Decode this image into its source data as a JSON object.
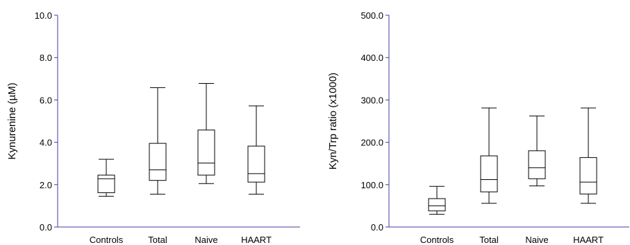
{
  "chart_data": [
    {
      "type": "box",
      "ylabel": "Kynurenine (µM)",
      "ylim": [
        0,
        10
      ],
      "yticks": [
        "0.0",
        "2.0",
        "4.0",
        "6.0",
        "8.0",
        "10.0"
      ],
      "categories": [
        "Controls",
        "Total",
        "Naive",
        "HAART"
      ],
      "boxes": [
        {
          "min": 1.45,
          "q1": 1.62,
          "median": 2.28,
          "q3": 2.45,
          "max": 3.2
        },
        {
          "min": 1.55,
          "q1": 2.2,
          "median": 2.7,
          "q3": 3.95,
          "max": 6.58
        },
        {
          "min": 2.05,
          "q1": 2.45,
          "median": 3.02,
          "q3": 4.58,
          "max": 6.78
        },
        {
          "min": 1.55,
          "q1": 2.12,
          "median": 2.52,
          "q3": 3.82,
          "max": 5.72
        }
      ]
    },
    {
      "type": "box",
      "ylabel": "Kyn/Trp ratio (x1000)",
      "ylim": [
        0,
        500
      ],
      "yticks": [
        "0.0",
        "100.0",
        "200.0",
        "300.0",
        "400.0",
        "500.0"
      ],
      "categories": [
        "Controls",
        "Total",
        "Naive",
        "HAART"
      ],
      "boxes": [
        {
          "min": 30,
          "q1": 38,
          "median": 50,
          "q3": 67,
          "max": 96
        },
        {
          "min": 56,
          "q1": 83,
          "median": 112,
          "q3": 168,
          "max": 281
        },
        {
          "min": 97,
          "q1": 114,
          "median": 140,
          "q3": 180,
          "max": 262
        },
        {
          "min": 56,
          "q1": 78,
          "median": 106,
          "q3": 164,
          "max": 281
        }
      ]
    }
  ],
  "colors": {
    "axis": "#3c3ca0",
    "box": "#000000"
  }
}
